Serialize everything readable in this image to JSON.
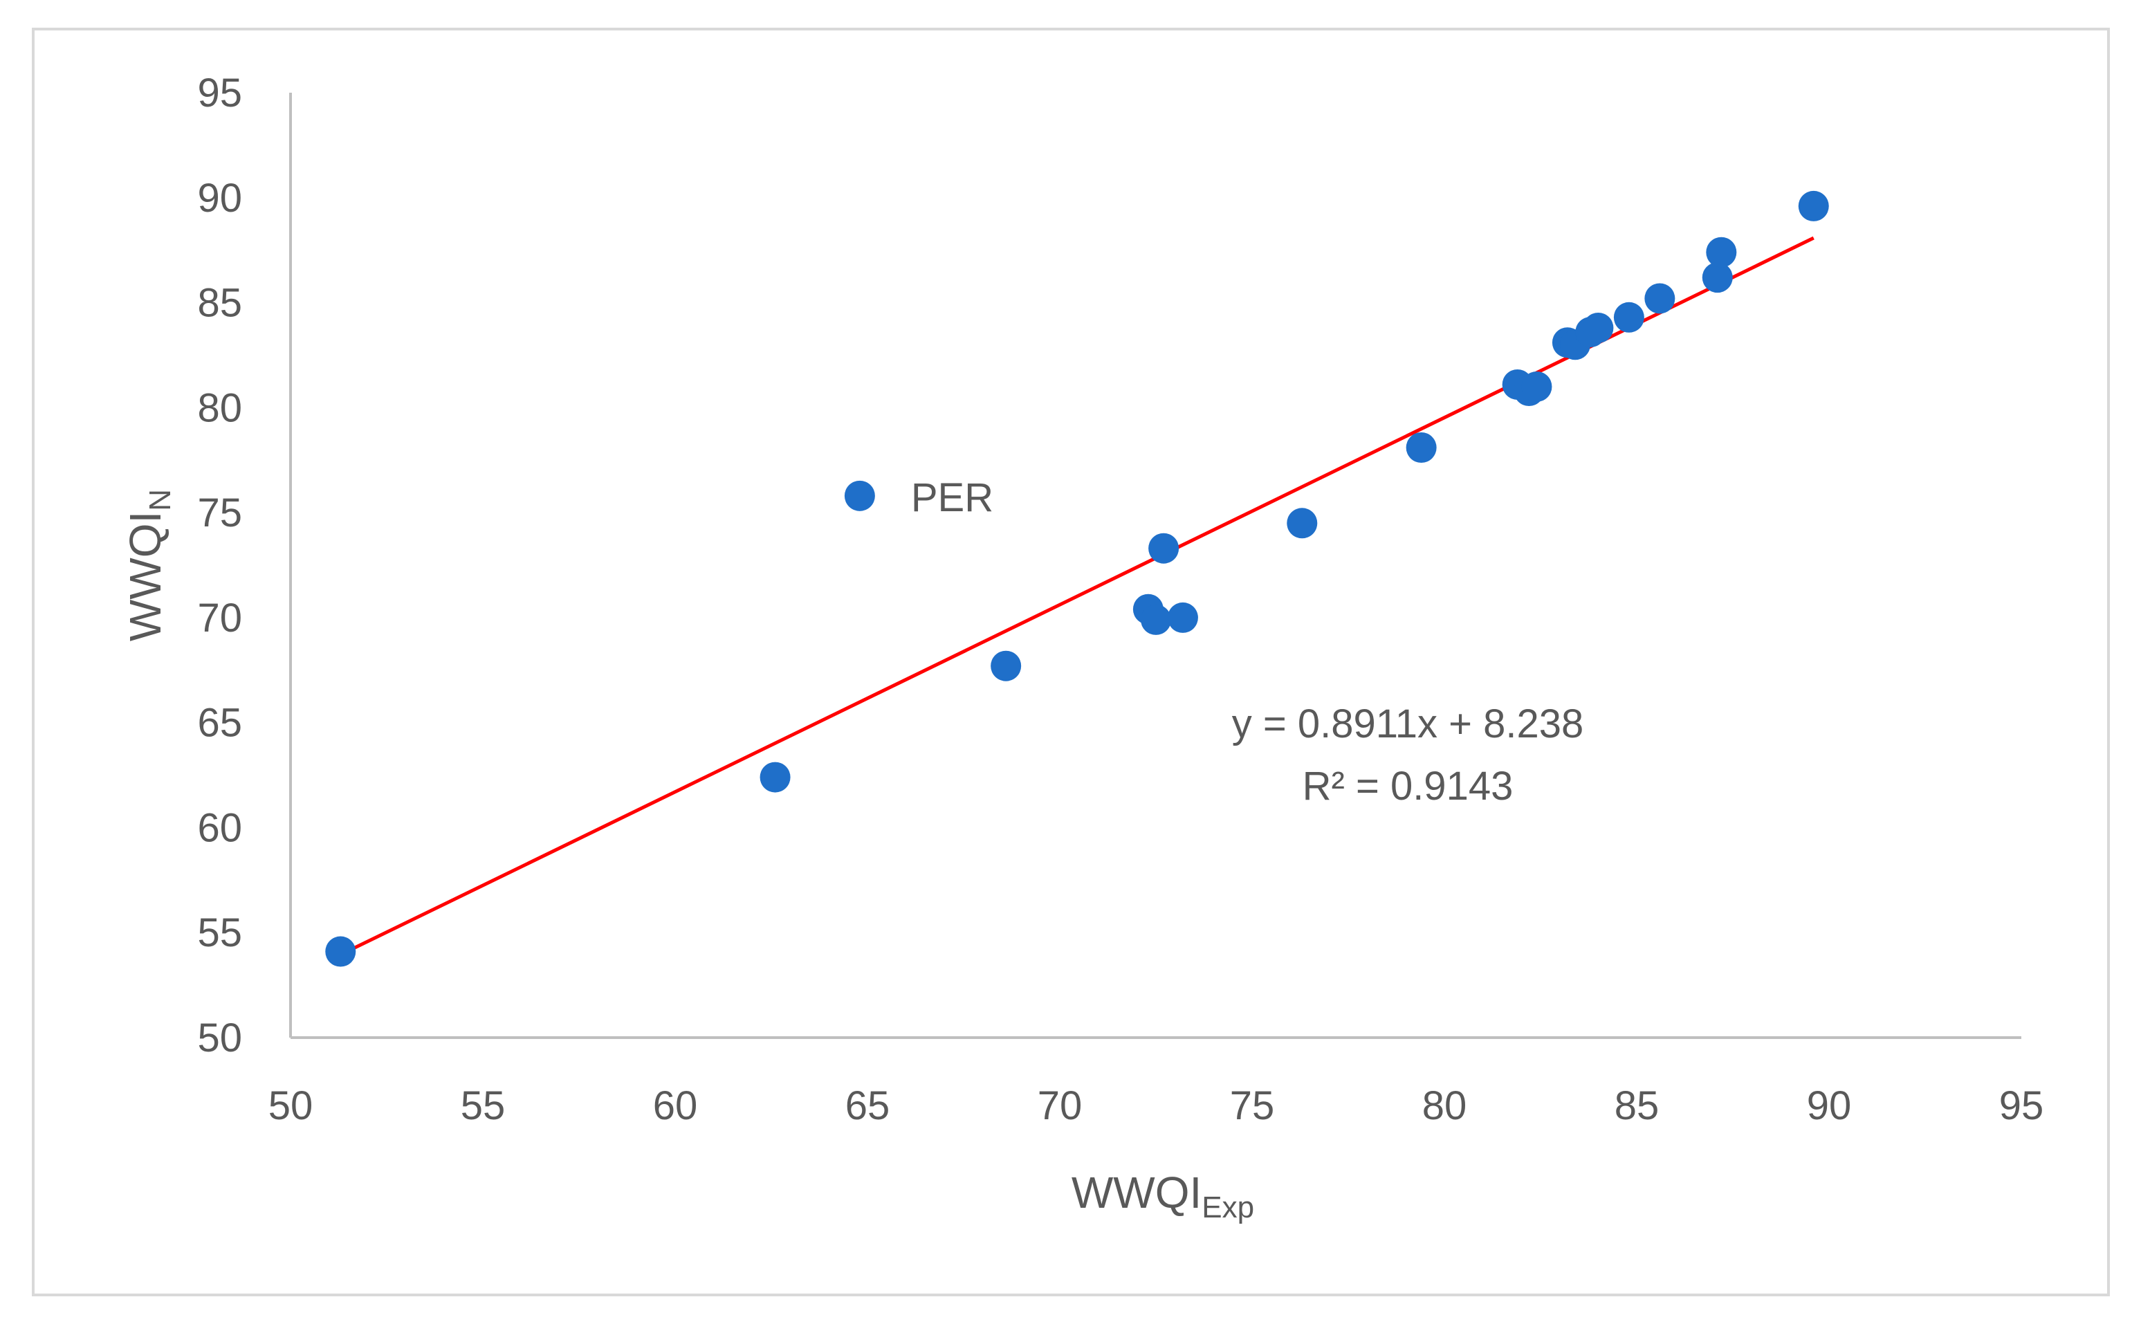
{
  "chart_data": {
    "type": "scatter",
    "title": "",
    "xlabel": {
      "main": "WWQI",
      "sub": "Exp"
    },
    "ylabel": {
      "main": "WWQI",
      "sub": "N"
    },
    "xlim": [
      50,
      95
    ],
    "ylim": [
      50,
      95
    ],
    "xticks": [
      50,
      55,
      60,
      65,
      70,
      75,
      80,
      85,
      90,
      95
    ],
    "yticks": [
      50,
      55,
      60,
      65,
      70,
      75,
      80,
      85,
      90,
      95
    ],
    "grid": false,
    "point_color": "#1f6fc9",
    "trend_color": "#ff0000",
    "series": [
      {
        "points": [
          {
            "x": 51.3,
            "y": 54.1
          },
          {
            "x": 62.6,
            "y": 62.4
          },
          {
            "x": 64.8,
            "y": 75.8,
            "label": "PER"
          },
          {
            "x": 68.6,
            "y": 67.7
          },
          {
            "x": 72.3,
            "y": 70.4
          },
          {
            "x": 72.5,
            "y": 69.9
          },
          {
            "x": 72.7,
            "y": 73.3
          },
          {
            "x": 73.2,
            "y": 70.0
          },
          {
            "x": 76.3,
            "y": 74.5
          },
          {
            "x": 79.4,
            "y": 78.1
          },
          {
            "x": 81.9,
            "y": 81.1
          },
          {
            "x": 82.2,
            "y": 80.8
          },
          {
            "x": 82.4,
            "y": 81.0
          },
          {
            "x": 83.2,
            "y": 83.1
          },
          {
            "x": 83.4,
            "y": 83.0
          },
          {
            "x": 83.8,
            "y": 83.6
          },
          {
            "x": 84.0,
            "y": 83.8
          },
          {
            "x": 84.8,
            "y": 84.3
          },
          {
            "x": 85.6,
            "y": 85.2
          },
          {
            "x": 87.1,
            "y": 86.2
          },
          {
            "x": 87.2,
            "y": 87.4
          },
          {
            "x": 89.6,
            "y": 89.6
          }
        ]
      }
    ],
    "trendline": {
      "slope": 0.8911,
      "intercept": 8.238,
      "x_range": [
        51.3,
        89.6
      ]
    },
    "annotations": {
      "equation": "y = 0.8911x + 8.238",
      "r_squared": "R² = 0.9143"
    }
  }
}
